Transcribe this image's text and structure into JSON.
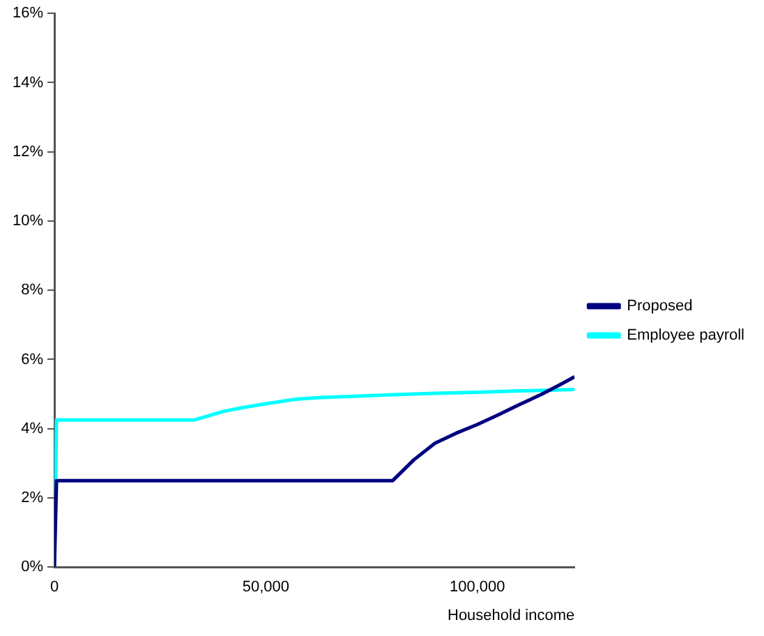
{
  "chart_data": {
    "type": "line",
    "xlabel": "Household income",
    "legend": "right",
    "grid": false,
    "marker": "none",
    "line_style": "solid",
    "xlim": [
      0,
      123000
    ],
    "xticks": [
      {
        "value": 0,
        "label": "0"
      },
      {
        "value": 50000,
        "label": "50,000"
      },
      {
        "value": 100000,
        "label": "100,000"
      }
    ],
    "ylim": [
      0,
      16
    ],
    "yticks": [
      {
        "value": 0,
        "label": "0%"
      },
      {
        "value": 2,
        "label": "2%"
      },
      {
        "value": 4,
        "label": "4%"
      },
      {
        "value": 6,
        "label": "6%"
      },
      {
        "value": 8,
        "label": "8%"
      },
      {
        "value": 10,
        "label": "10%"
      },
      {
        "value": 12,
        "label": "12%"
      },
      {
        "value": 14,
        "label": "14%"
      },
      {
        "value": 16,
        "label": "16%"
      }
    ],
    "series": [
      {
        "name": "Proposed",
        "color": "#000080",
        "x": [
          0,
          500,
          80000,
          85000,
          90000,
          95000,
          100000,
          105000,
          110000,
          115000,
          120000,
          123000
        ],
        "values": [
          0,
          2.5,
          2.5,
          3.1,
          3.58,
          3.87,
          4.12,
          4.4,
          4.7,
          4.98,
          5.3,
          5.5
        ]
      },
      {
        "name": "Employee payroll",
        "color": "#00ffff",
        "x": [
          0,
          500,
          33000,
          40000,
          45000,
          50000,
          57000,
          63000,
          70000,
          80000,
          90000,
          100000,
          110000,
          123000
        ],
        "values": [
          0,
          4.25,
          4.25,
          4.5,
          4.62,
          4.72,
          4.85,
          4.9,
          4.93,
          4.98,
          5.02,
          5.05,
          5.09,
          5.13
        ]
      }
    ]
  }
}
